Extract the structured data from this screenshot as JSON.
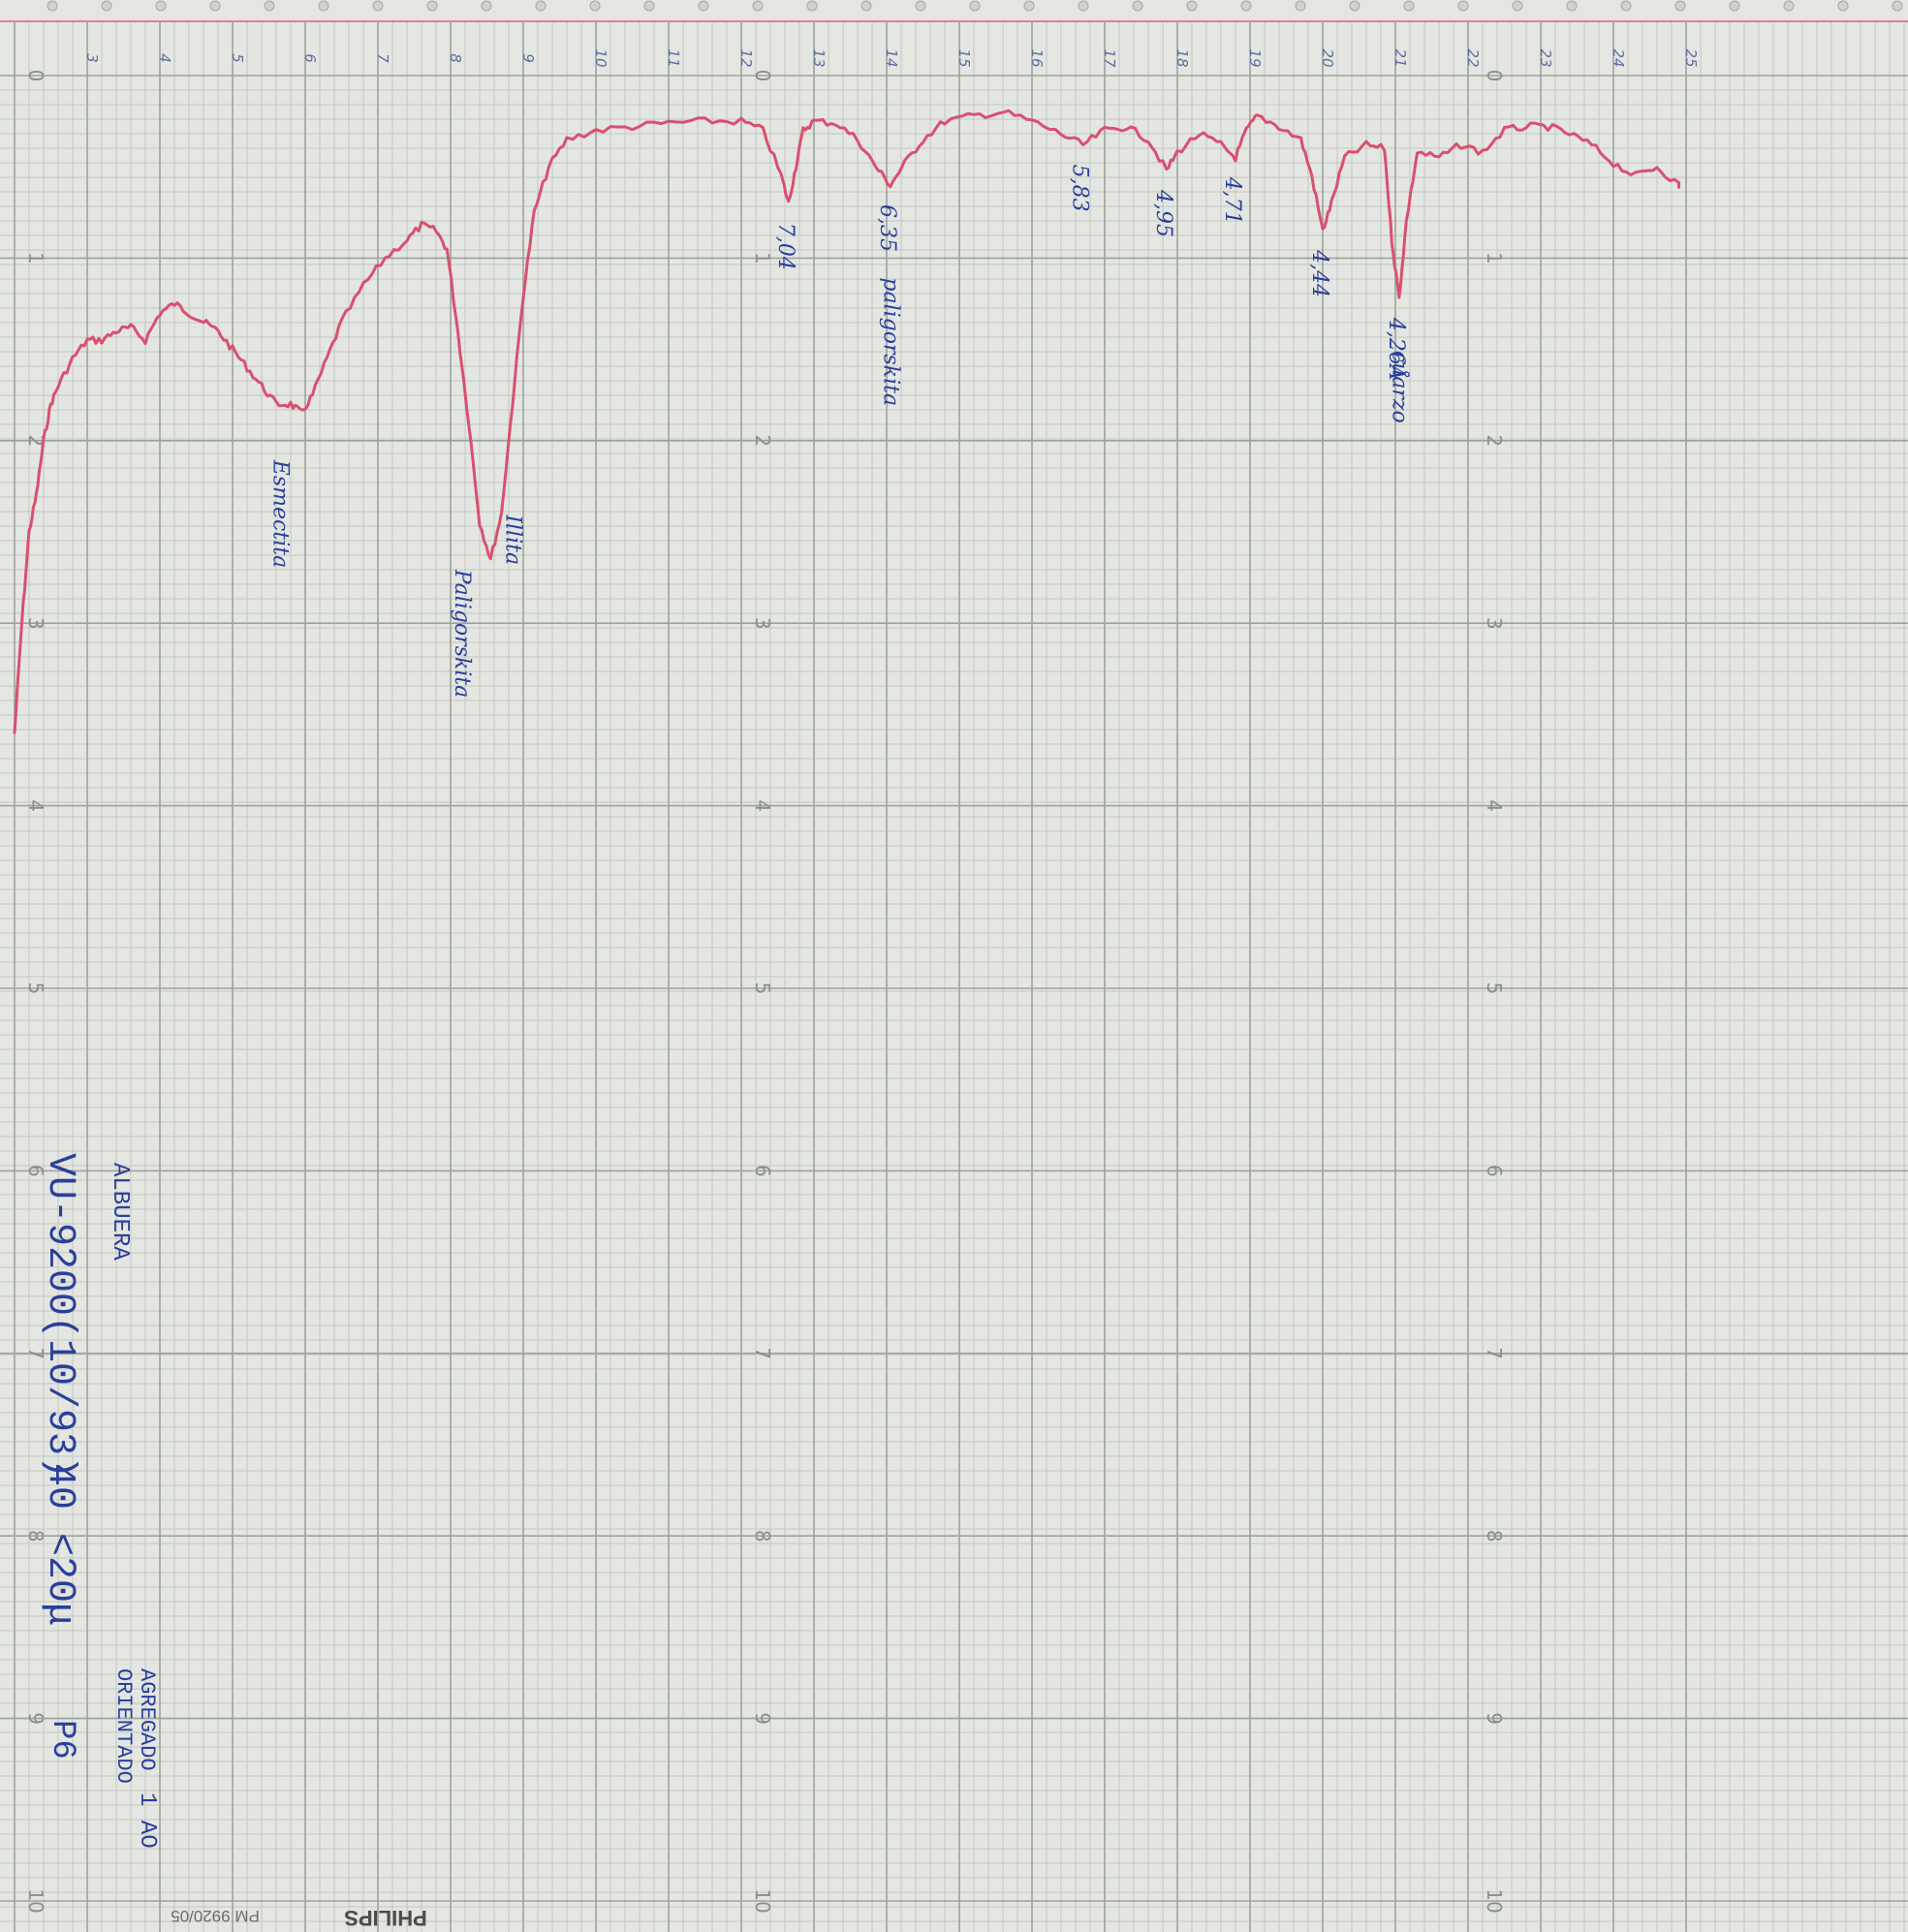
{
  "chart_data": {
    "type": "line",
    "title": "",
    "xlabel": "",
    "ylabel": "",
    "x_direction": "decreasing to the right",
    "xlim": [
      2,
      25
    ],
    "ylim": [
      0,
      10
    ],
    "grid": true,
    "legend": "none",
    "colors": {
      "trace": "#d9506e",
      "ink": "#2a3f9a",
      "grid_minor": "#c3c7c1",
      "grid_major": "#9ea29c",
      "paper": "#e4e6e2",
      "sprocket_line": "#e27f94"
    },
    "chart_scale_ticks": [
      "0",
      "1",
      "2",
      "3",
      "4",
      "5",
      "6",
      "7",
      "8",
      "9",
      "10"
    ],
    "angle_scale_ticks": [
      "3",
      "4",
      "5",
      "6",
      "7",
      "8",
      "9",
      "10",
      "11",
      "12",
      "13",
      "14",
      "15",
      "16",
      "17",
      "18",
      "19",
      "20",
      "21",
      "22",
      "23",
      "24",
      "25"
    ],
    "series": [
      {
        "values_note": "x = degrees 2θ, y = chart reading (0 at top)",
        "points": [
          [
            2.0,
            3.6
          ],
          [
            2.1,
            3.0
          ],
          [
            2.2,
            2.5
          ],
          [
            2.3,
            2.3
          ],
          [
            2.4,
            2.0
          ],
          [
            2.5,
            1.8
          ],
          [
            2.6,
            1.7
          ],
          [
            2.8,
            1.55
          ],
          [
            3.0,
            1.45
          ],
          [
            3.2,
            1.45
          ],
          [
            3.4,
            1.4
          ],
          [
            3.6,
            1.38
          ],
          [
            3.8,
            1.45
          ],
          [
            4.0,
            1.3
          ],
          [
            4.2,
            1.25
          ],
          [
            4.4,
            1.3
          ],
          [
            4.6,
            1.35
          ],
          [
            4.8,
            1.4
          ],
          [
            5.0,
            1.5
          ],
          [
            5.2,
            1.6
          ],
          [
            5.4,
            1.7
          ],
          [
            5.6,
            1.8
          ],
          [
            5.8,
            1.8
          ],
          [
            5.95,
            1.85
          ],
          [
            6.1,
            1.75
          ],
          [
            6.3,
            1.55
          ],
          [
            6.5,
            1.35
          ],
          [
            6.8,
            1.15
          ],
          [
            7.1,
            1.0
          ],
          [
            7.4,
            0.9
          ],
          [
            7.6,
            0.82
          ],
          [
            7.8,
            0.85
          ],
          [
            7.95,
            0.95
          ],
          [
            8.1,
            1.4
          ],
          [
            8.25,
            1.9
          ],
          [
            8.4,
            2.45
          ],
          [
            8.55,
            2.65
          ],
          [
            8.7,
            2.4
          ],
          [
            8.85,
            1.8
          ],
          [
            9.0,
            1.2
          ],
          [
            9.15,
            0.75
          ],
          [
            9.35,
            0.5
          ],
          [
            9.6,
            0.35
          ],
          [
            10.0,
            0.3
          ],
          [
            10.5,
            0.28
          ],
          [
            11.0,
            0.26
          ],
          [
            11.5,
            0.25
          ],
          [
            12.0,
            0.25
          ],
          [
            12.3,
            0.3
          ],
          [
            12.55,
            0.55
          ],
          [
            12.65,
            0.7
          ],
          [
            12.75,
            0.5
          ],
          [
            12.85,
            0.3
          ],
          [
            13.0,
            0.25
          ],
          [
            13.3,
            0.26
          ],
          [
            13.6,
            0.35
          ],
          [
            13.85,
            0.5
          ],
          [
            14.05,
            0.6
          ],
          [
            14.25,
            0.48
          ],
          [
            14.5,
            0.35
          ],
          [
            14.8,
            0.25
          ],
          [
            15.2,
            0.22
          ],
          [
            15.6,
            0.2
          ],
          [
            16.0,
            0.25
          ],
          [
            16.4,
            0.32
          ],
          [
            16.7,
            0.38
          ],
          [
            17.0,
            0.3
          ],
          [
            17.3,
            0.28
          ],
          [
            17.6,
            0.35
          ],
          [
            17.85,
            0.52
          ],
          [
            18.0,
            0.42
          ],
          [
            18.3,
            0.32
          ],
          [
            18.6,
            0.38
          ],
          [
            18.8,
            0.45
          ],
          [
            18.95,
            0.3
          ],
          [
            19.1,
            0.22
          ],
          [
            19.4,
            0.28
          ],
          [
            19.7,
            0.35
          ],
          [
            19.85,
            0.55
          ],
          [
            20.0,
            0.85
          ],
          [
            20.12,
            0.7
          ],
          [
            20.3,
            0.45
          ],
          [
            20.6,
            0.38
          ],
          [
            20.85,
            0.4
          ],
          [
            20.95,
            0.9
          ],
          [
            21.05,
            1.22
          ],
          [
            21.15,
            0.8
          ],
          [
            21.3,
            0.42
          ],
          [
            21.6,
            0.45
          ],
          [
            21.9,
            0.38
          ],
          [
            22.2,
            0.42
          ],
          [
            22.5,
            0.3
          ],
          [
            22.8,
            0.28
          ],
          [
            23.1,
            0.28
          ],
          [
            23.4,
            0.32
          ],
          [
            23.7,
            0.38
          ],
          [
            24.0,
            0.48
          ],
          [
            24.3,
            0.55
          ],
          [
            24.6,
            0.5
          ],
          [
            24.9,
            0.6
          ]
        ]
      }
    ],
    "peak_annotations": [
      {
        "text": "7,04",
        "x": 12.65,
        "y": 0.7
      },
      {
        "text": "6,35",
        "x": 14.05,
        "y": 0.6
      },
      {
        "text": "5,83",
        "x": 16.7,
        "y": 0.38
      },
      {
        "text": "4,95",
        "x": 17.85,
        "y": 0.52
      },
      {
        "text": "4,71",
        "x": 18.8,
        "y": 0.45
      },
      {
        "text": "4,44",
        "x": 20.0,
        "y": 0.85
      },
      {
        "text": "4,26Å",
        "x": 21.05,
        "y": 1.22
      }
    ],
    "mineral_annotations": [
      {
        "text": "Illita",
        "x": 8.9,
        "y": 2.3
      },
      {
        "text": "Paligorskita",
        "x": 8.2,
        "y": 2.6
      },
      {
        "text": "Esmectita",
        "x": 5.7,
        "y": 2.0
      },
      {
        "text": "paligorskita",
        "x": 14.1,
        "y": 1.0
      },
      {
        "text": "cuarzo",
        "x": 21.1,
        "y": 1.4
      }
    ]
  },
  "sample_label": {
    "locality": "ALBUERA",
    "code": "VU-9200(10/93)",
    "fraction": "40 <20μ",
    "tag": "P6",
    "prep_line_1": "AGREGADO",
    "prep_line_2": "ORIENTADO",
    "prep_suffix": "1 AO"
  },
  "paper": {
    "brand": "PHILIPS",
    "code": "PM 9920/05"
  }
}
